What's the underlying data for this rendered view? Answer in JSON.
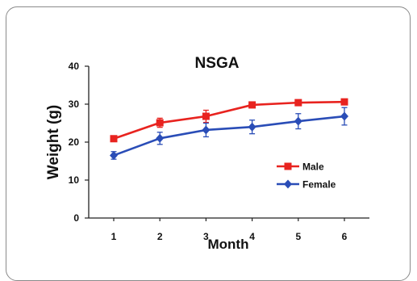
{
  "chart_data": {
    "type": "line",
    "title": "NSGA",
    "xlabel": "Month",
    "ylabel": "Weight (g)",
    "categories": [
      "1",
      "2",
      "3",
      "4",
      "5",
      "6"
    ],
    "ylim": [
      0,
      40
    ],
    "yticks": [
      "0",
      "10",
      "20",
      "30",
      "40"
    ],
    "grid": false,
    "legend_position": "right",
    "series": [
      {
        "name": "Male",
        "color": "#e8231f",
        "marker": "square",
        "values": [
          20.9,
          25.1,
          26.8,
          29.8,
          30.4,
          30.6
        ],
        "error": [
          0.6,
          1.2,
          1.6,
          0.7,
          0.6,
          0.7
        ]
      },
      {
        "name": "Female",
        "color": "#2a4db7",
        "marker": "diamond",
        "values": [
          16.5,
          21.0,
          23.2,
          24.0,
          25.5,
          26.8
        ],
        "error": [
          1.0,
          1.6,
          1.8,
          1.8,
          2.0,
          2.3
        ]
      }
    ]
  }
}
